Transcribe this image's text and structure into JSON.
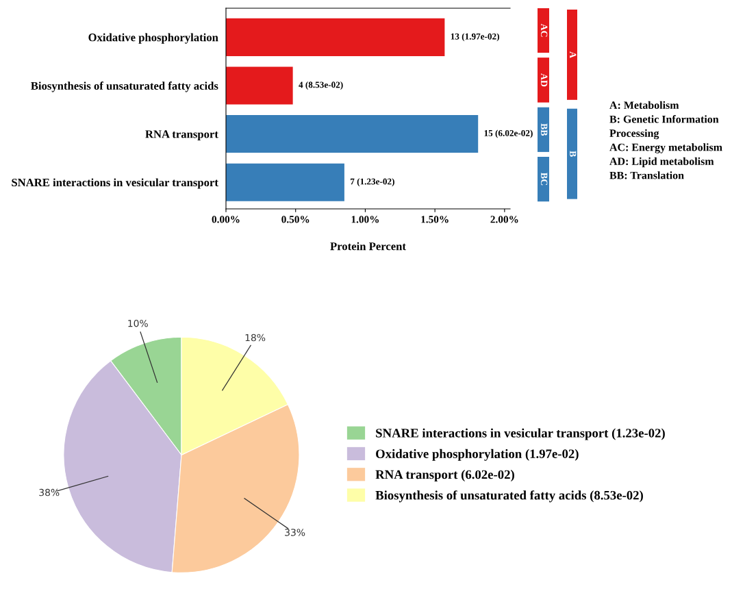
{
  "chart_data": [
    {
      "type": "bar",
      "orientation": "horizontal",
      "xlabel": "Protein Percent",
      "categories": [
        "Oxidative phosphorylation",
        "Biosynthesis of unsaturated fatty acids",
        "RNA transport",
        "SNARE interactions in vesicular transport"
      ],
      "values": [
        1.57,
        0.48,
        1.81,
        0.85
      ],
      "colors": [
        "#e41a1c",
        "#e41a1c",
        "#377eb8",
        "#377eb8"
      ],
      "xlim": [
        0,
        2.04
      ],
      "xticks": [
        {
          "value": 0,
          "label": "0.00%"
        },
        {
          "value": 0.5,
          "label": "0.50%"
        },
        {
          "value": 1.0,
          "label": "1.00%"
        },
        {
          "value": 1.5,
          "label": "1.50%"
        },
        {
          "value": 2.0,
          "label": "2.00%"
        }
      ],
      "annotations": [
        {
          "text": "13 (1.97e-02)",
          "x": 1.57,
          "y": "Oxidative phosphorylation"
        },
        {
          "text": "4 (8.53e-02)",
          "x": 0.48,
          "y": "Biosynthesis of unsaturated fatty acids"
        },
        {
          "text": "15 (6.02e-02)",
          "x": 1.81,
          "y": "RNA transport"
        },
        {
          "text": "7 (1.23e-02)",
          "x": 0.85,
          "y": "SNARE interactions in vesicular transport"
        },
        "AC",
        "AD",
        "BB",
        "BC",
        "A",
        "B",
        "A: Metabolism",
        "B: Genetic Information",
        "Processing",
        "AC: Energy metabolism",
        "AD: Lipid metabolism",
        "BB: Translation"
      ],
      "grid": false
    },
    {
      "type": "pie",
      "categories": [
        "SNARE interactions in vesicular transport (1.23e-02)",
        "Oxidative phosphorylation (1.97e-02)",
        "RNA transport (6.02e-02)",
        "Biosynthesis of unsaturated fatty acids (8.53e-02)"
      ],
      "values": [
        10.26,
        38.46,
        33.33,
        17.95
      ],
      "value_labels": [
        "10%",
        "38%",
        "33%",
        "18%"
      ],
      "colors": [
        "#99d594",
        "#c9bcdc",
        "#fcca9c",
        "#fefea8"
      ],
      "legend": "right"
    }
  ]
}
